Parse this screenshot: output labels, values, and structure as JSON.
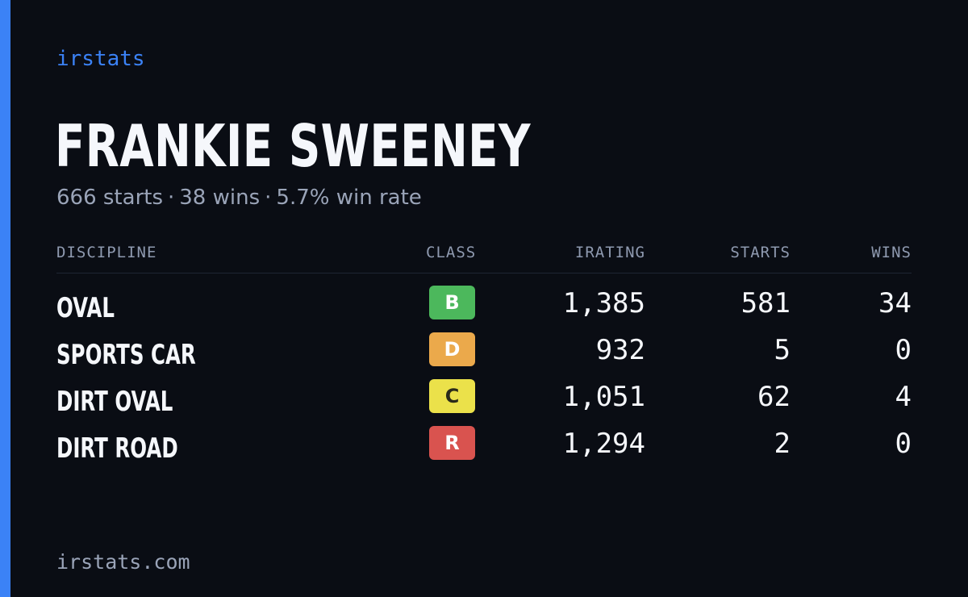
{
  "brand": "irstats",
  "player": {
    "name": "FRANKIE SWEENEY",
    "summary": {
      "starts": "666 starts",
      "wins": "38 wins",
      "win_rate": "5.7% win rate",
      "separator": "·"
    }
  },
  "table": {
    "headers": {
      "discipline": "DISCIPLINE",
      "class": "CLASS",
      "irating": "IRATING",
      "starts": "STARTS",
      "wins": "WINS"
    },
    "rows": [
      {
        "discipline": "OVAL",
        "class": "B",
        "class_color": "#4cb85c",
        "class_text_color": "#ffffff",
        "irating": "1,385",
        "starts": "581",
        "wins": "34"
      },
      {
        "discipline": "SPORTS CAR",
        "class": "D",
        "class_color": "#eba94b",
        "class_text_color": "#ffffff",
        "irating": "932",
        "starts": "5",
        "wins": "0"
      },
      {
        "discipline": "DIRT OVAL",
        "class": "C",
        "class_color": "#ebe14a",
        "class_text_color": "#2a2a1a",
        "irating": "1,051",
        "starts": "62",
        "wins": "4"
      },
      {
        "discipline": "DIRT ROAD",
        "class": "R",
        "class_color": "#d9534f",
        "class_text_color": "#ffffff",
        "irating": "1,294",
        "starts": "2",
        "wins": "0"
      }
    ]
  },
  "footer": "irstats.com",
  "colors": {
    "background": "#0a0d14",
    "accent": "#3b82f6",
    "text_primary": "#f5f7fb",
    "text_muted": "#9aa4b8"
  }
}
